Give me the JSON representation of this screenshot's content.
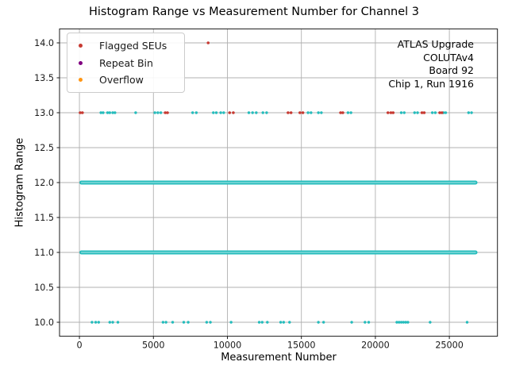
{
  "chart_data": {
    "type": "scatter",
    "title": "Histogram Range vs Measurement Number for Channel 3",
    "xlabel": "Measurement Number",
    "ylabel": "Histogram Range",
    "xlim": [
      -1345,
      28250
    ],
    "ylim": [
      9.8,
      14.2
    ],
    "xticks": {
      "values": [
        0,
        5000,
        10000,
        15000,
        20000,
        25000
      ],
      "labels": [
        "0",
        "5000",
        "10000",
        "15000",
        "20000",
        "25000"
      ]
    },
    "yticks": {
      "values": [
        10.0,
        10.5,
        11.0,
        11.5,
        12.0,
        12.5,
        13.0,
        13.5,
        14.0
      ],
      "labels": [
        "10.0",
        "10.5",
        "11.0",
        "11.5",
        "12.0",
        "12.5",
        "13.0",
        "13.5",
        "14.0"
      ]
    },
    "grid": true,
    "grid_color": "#b0b0b0",
    "axis_color": "#1a1a1a",
    "legend": {
      "position": "upper-left",
      "items": [
        {
          "label": "Flagged SEUs",
          "color": "#c73a32"
        },
        {
          "label": "Repeat Bin",
          "color": "#800080"
        },
        {
          "label": "Overflow",
          "color": "#ff9614"
        }
      ]
    },
    "annotation": {
      "position": "upper-right",
      "lines": [
        "ATLAS Upgrade",
        "COLUTAv4",
        "Board 92",
        "Chip 1, Run 1916"
      ]
    },
    "series": [
      {
        "name": "histogram-range-dense-bands",
        "color": "#25bcbc",
        "type": "band",
        "bands": [
          {
            "y": 12,
            "x_start": 0,
            "x_end": 26900
          },
          {
            "y": 11,
            "x_start": 0,
            "x_end": 26900
          }
        ]
      },
      {
        "name": "histogram-range-scatter",
        "color": "#25bcbc",
        "type": "points",
        "marker_px": 1.7,
        "points": [
          [
            1450,
            13
          ],
          [
            1600,
            13
          ],
          [
            1900,
            13
          ],
          [
            2050,
            13
          ],
          [
            2250,
            13
          ],
          [
            2400,
            13
          ],
          [
            3800,
            13
          ],
          [
            5100,
            13
          ],
          [
            5300,
            13
          ],
          [
            5500,
            13
          ],
          [
            7650,
            13
          ],
          [
            7900,
            13
          ],
          [
            9050,
            13
          ],
          [
            9250,
            13
          ],
          [
            9550,
            13
          ],
          [
            9750,
            13
          ],
          [
            11450,
            13
          ],
          [
            11700,
            13
          ],
          [
            11950,
            13
          ],
          [
            12400,
            13
          ],
          [
            12650,
            13
          ],
          [
            15450,
            13
          ],
          [
            15650,
            13
          ],
          [
            16150,
            13
          ],
          [
            16350,
            13
          ],
          [
            18150,
            13
          ],
          [
            18350,
            13
          ],
          [
            21750,
            13
          ],
          [
            21950,
            13
          ],
          [
            22650,
            13
          ],
          [
            22850,
            13
          ],
          [
            23850,
            13
          ],
          [
            24050,
            13
          ],
          [
            24600,
            13
          ],
          [
            24750,
            13
          ],
          [
            26300,
            13
          ],
          [
            26500,
            13
          ],
          [
            850,
            10
          ],
          [
            1100,
            10
          ],
          [
            1300,
            10
          ],
          [
            2050,
            10
          ],
          [
            2250,
            10
          ],
          [
            2600,
            10
          ],
          [
            5650,
            10
          ],
          [
            5850,
            10
          ],
          [
            6300,
            10
          ],
          [
            7050,
            10
          ],
          [
            7350,
            10
          ],
          [
            8600,
            10
          ],
          [
            8850,
            10
          ],
          [
            10250,
            10
          ],
          [
            12150,
            10
          ],
          [
            12350,
            10
          ],
          [
            12700,
            10
          ],
          [
            13600,
            10
          ],
          [
            13800,
            10
          ],
          [
            14200,
            10
          ],
          [
            16150,
            10
          ],
          [
            16500,
            10
          ],
          [
            18400,
            10
          ],
          [
            19300,
            10
          ],
          [
            19550,
            10
          ],
          [
            21450,
            10
          ],
          [
            21600,
            10
          ],
          [
            21750,
            10
          ],
          [
            21900,
            10
          ],
          [
            22050,
            10
          ],
          [
            22200,
            10
          ],
          [
            23700,
            10
          ],
          [
            26200,
            10
          ]
        ]
      },
      {
        "name": "flagged-seus",
        "color": "#c73a32",
        "type": "points",
        "marker_px": 1.8,
        "points": [
          [
            50,
            13
          ],
          [
            200,
            13
          ],
          [
            5800,
            13
          ],
          [
            5950,
            13
          ],
          [
            10150,
            13
          ],
          [
            10400,
            13
          ],
          [
            14100,
            13
          ],
          [
            14300,
            13
          ],
          [
            14900,
            13
          ],
          [
            15100,
            13
          ],
          [
            17650,
            13
          ],
          [
            17800,
            13
          ],
          [
            20850,
            13
          ],
          [
            21050,
            13
          ],
          [
            21200,
            13
          ],
          [
            23150,
            13
          ],
          [
            23300,
            13
          ],
          [
            24350,
            13
          ],
          [
            24500,
            13
          ],
          [
            8700,
            14
          ]
        ]
      }
    ]
  }
}
